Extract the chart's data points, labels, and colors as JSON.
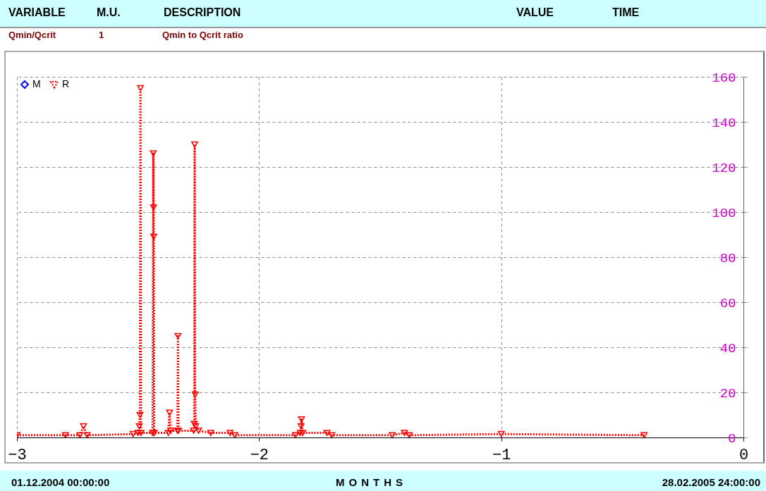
{
  "chart_data": {
    "type": "line",
    "xlabel": "MONTHS",
    "annotations": [
      "VARIABLE",
      "M.U.",
      "DESCRIPTION",
      "VALUE",
      "TIME",
      "Qmin/Qcrit",
      "1",
      "Qmin to Qcrit ratio",
      "01.12.2004 00:00:00",
      "28.02.2005 24:00:00"
    ],
    "x": [
      -3.0,
      -2.8,
      -2.74,
      -2.725,
      -2.71,
      -2.52,
      -2.5,
      -2.495,
      -2.492,
      -2.49,
      -2.488,
      -2.44,
      -2.437,
      -2.436,
      -2.435,
      -2.433,
      -2.375,
      -2.37,
      -2.365,
      -2.337,
      -2.335,
      -2.333,
      -2.27,
      -2.268,
      -2.266,
      -2.264,
      -2.262,
      -2.25,
      -2.2,
      -2.12,
      -2.1,
      -1.85,
      -1.83,
      -1.827,
      -1.825,
      -1.82,
      -1.72,
      -1.7,
      -1.45,
      -1.4,
      -1.38,
      -1.0,
      -0.41
    ],
    "series": [
      {
        "name": "M",
        "color": "#0000ff",
        "marker": "diamond",
        "line_style": "solid",
        "axis": "y2",
        "values": [
          null,
          null,
          null,
          null,
          null,
          null,
          null,
          null,
          null,
          null,
          null,
          null,
          null,
          null,
          null,
          null,
          null,
          null,
          null,
          null,
          null,
          null,
          null,
          null,
          null,
          null,
          null,
          null,
          null,
          null,
          null,
          null,
          null,
          null,
          null,
          null,
          null,
          null,
          null,
          null,
          null,
          null,
          null
        ]
      },
      {
        "name": "R",
        "color": "#ff0000",
        "marker": "triangle",
        "line_style": "dotted",
        "axis": "y2",
        "values": [
          1,
          1,
          1,
          5,
          1,
          1.5,
          2,
          5,
          10,
          155,
          2,
          2,
          126,
          102,
          89,
          2,
          2,
          11,
          3,
          3,
          45,
          3,
          3,
          6,
          130,
          19,
          5,
          3,
          2,
          2,
          1,
          1,
          2,
          5,
          8,
          2,
          2,
          1,
          1,
          2,
          1,
          1.5,
          1
        ]
      }
    ],
    "xlim": [
      -3,
      0
    ],
    "xticks": [
      -3,
      -2,
      -1,
      0
    ],
    "y2lim": [
      0,
      160
    ],
    "y2ticks": [
      0,
      20,
      40,
      60,
      80,
      100,
      120,
      140,
      160
    ],
    "grid": true,
    "legend": "top left"
  }
}
